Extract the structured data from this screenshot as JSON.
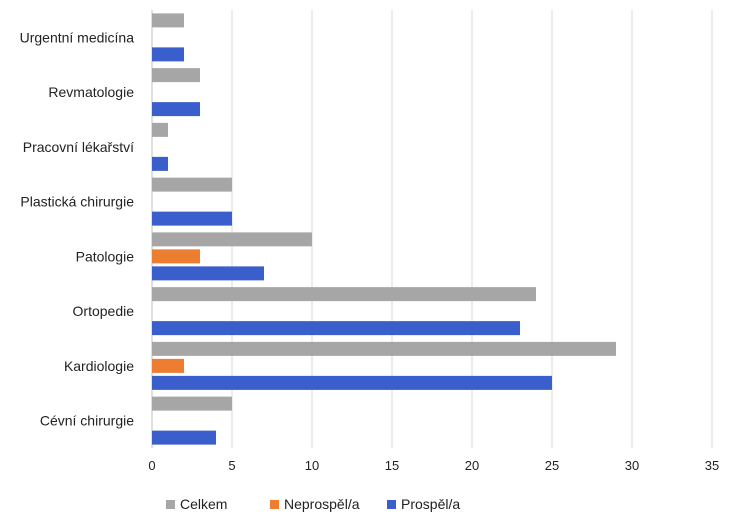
{
  "chart_data": {
    "type": "bar",
    "orientation": "horizontal",
    "categories": [
      "Urgentní medicína",
      "Revmatologie",
      "Pracovní lékařství",
      "Plastická chirurgie",
      "Patologie",
      "Ortopedie",
      "Kardiologie",
      "Cévní chirurgie"
    ],
    "series": [
      {
        "name": "Celkem",
        "color": "#a6a6a6",
        "values": [
          2,
          3,
          1,
          5,
          10,
          24,
          29,
          5
        ]
      },
      {
        "name": "Neprospěl/a",
        "color": "#ed7d31",
        "values": [
          0,
          0,
          0,
          0,
          3,
          0,
          2,
          0
        ]
      },
      {
        "name": "Prospěl/a",
        "color": "#3a5fcd",
        "values": [
          2,
          3,
          1,
          5,
          7,
          23,
          25,
          4
        ]
      }
    ],
    "xlim": [
      0,
      35
    ],
    "xticks": [
      "0",
      "5",
      "10",
      "15",
      "20",
      "25",
      "30",
      "35"
    ],
    "grid": true,
    "legend_position": "bottom"
  }
}
